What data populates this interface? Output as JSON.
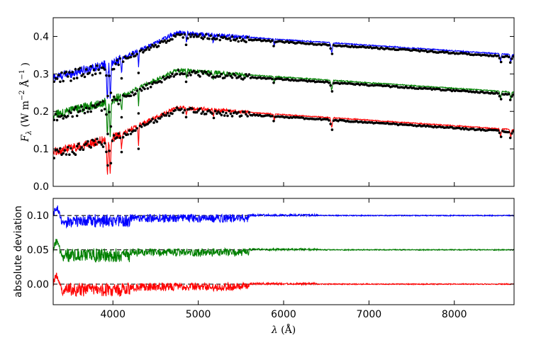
{
  "chart_data": [
    {
      "type": "line",
      "panel": "top",
      "xlabel": "",
      "ylabel": "F_λ (W m^-2 Å^-1)",
      "xlim": [
        3300,
        8700
      ],
      "ylim": [
        0.0,
        0.45
      ],
      "y_ticks": [
        "0.0",
        "0.1",
        "0.2",
        "0.3",
        "0.4"
      ],
      "grid": false,
      "legend": "none",
      "continuum": {
        "peak_wavelength": 4750,
        "red_end_fraction": 0.72,
        "break_wavelength": 4000
      },
      "series": [
        {
          "color": "#0000ff",
          "offset": 0.2,
          "peak_flux": 0.41,
          "blue_end_flux": 0.09
        },
        {
          "color": "#008000",
          "offset": 0.1,
          "peak_flux": 0.31,
          "blue_end_flux": 0.09
        },
        {
          "color": "#ff0000",
          "offset": 0.0,
          "peak_flux": 0.21,
          "blue_end_flux": 0.09
        }
      ],
      "observed_points_color": "#000000",
      "absorption_lines": [
        3934,
        3969,
        4101,
        4300,
        4861,
        5175,
        5890,
        6563,
        8542,
        8662
      ]
    },
    {
      "type": "line",
      "panel": "bottom",
      "xlabel": "λ (Å)",
      "ylabel": "absolute deviation",
      "xlim": [
        3300,
        8700
      ],
      "ylim": [
        -0.03,
        0.125
      ],
      "x_ticks": [
        "4000",
        "5000",
        "6000",
        "7000",
        "8000"
      ],
      "y_ticks": [
        "0.00",
        "0.05",
        "0.10"
      ],
      "grid": false,
      "legend": "none",
      "reference_lines": [
        0.0,
        0.05,
        0.1
      ],
      "series": [
        {
          "color": "#0000ff",
          "baseline": 0.1
        },
        {
          "color": "#008000",
          "baseline": 0.05
        },
        {
          "color": "#ff0000",
          "baseline": 0.0
        }
      ]
    }
  ]
}
